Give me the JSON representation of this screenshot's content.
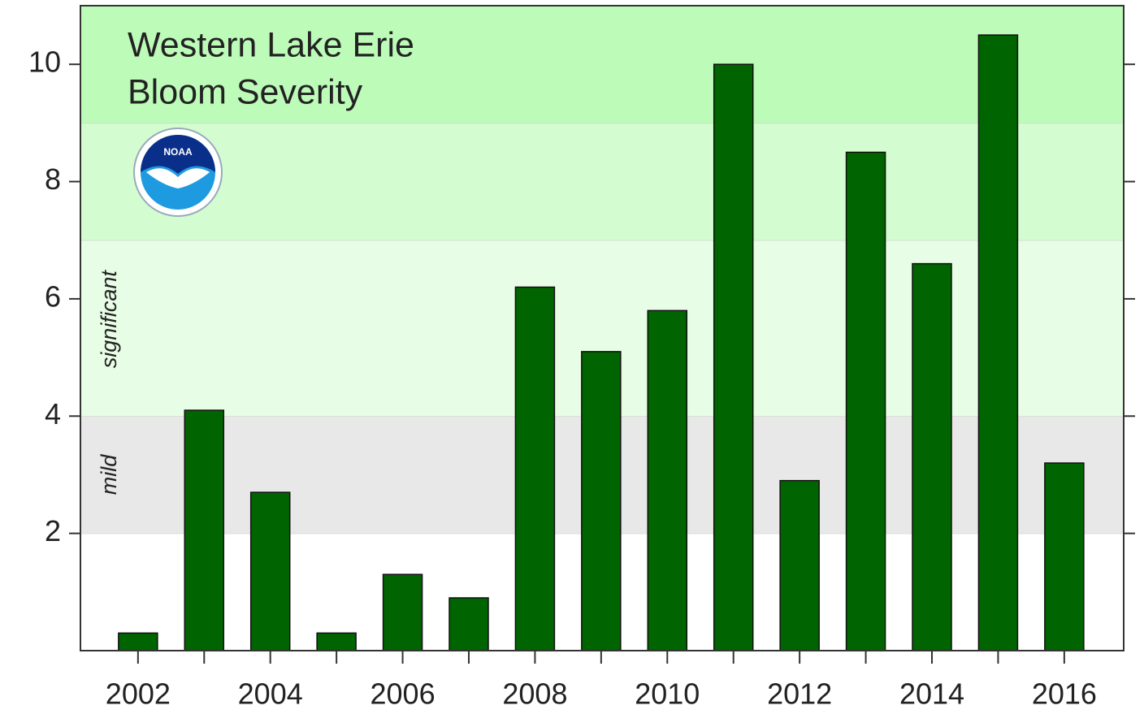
{
  "chart_data": {
    "type": "bar",
    "title": [
      "Western Lake Erie",
      "Bloom Severity"
    ],
    "logo_text": "NOAA",
    "categories": [
      "2002",
      null,
      "2004",
      null,
      "2006",
      null,
      "2008",
      null,
      "2010",
      null,
      "2012",
      null,
      "2014",
      null,
      "2016"
    ],
    "values": [
      0.3,
      4.1,
      2.7,
      0.3,
      1.3,
      0.9,
      6.2,
      5.1,
      5.8,
      10.0,
      2.9,
      8.5,
      6.6,
      10.5,
      3.2
    ],
    "color": "#006400",
    "ylim": [
      0,
      11
    ],
    "yticks": [
      2,
      4,
      6,
      8,
      10
    ],
    "bands": [
      {
        "from": 0,
        "to": 2,
        "color": "#ffffff"
      },
      {
        "from": 2,
        "to": 4,
        "color": "#e8e8e8",
        "label": "mild"
      },
      {
        "from": 4,
        "to": 7,
        "color": "#e8fde6",
        "label": "significant"
      },
      {
        "from": 7,
        "to": 9,
        "color": "#d3fcd0"
      },
      {
        "from": 9,
        "to": 11,
        "color": "#bdfbb8"
      }
    ]
  }
}
